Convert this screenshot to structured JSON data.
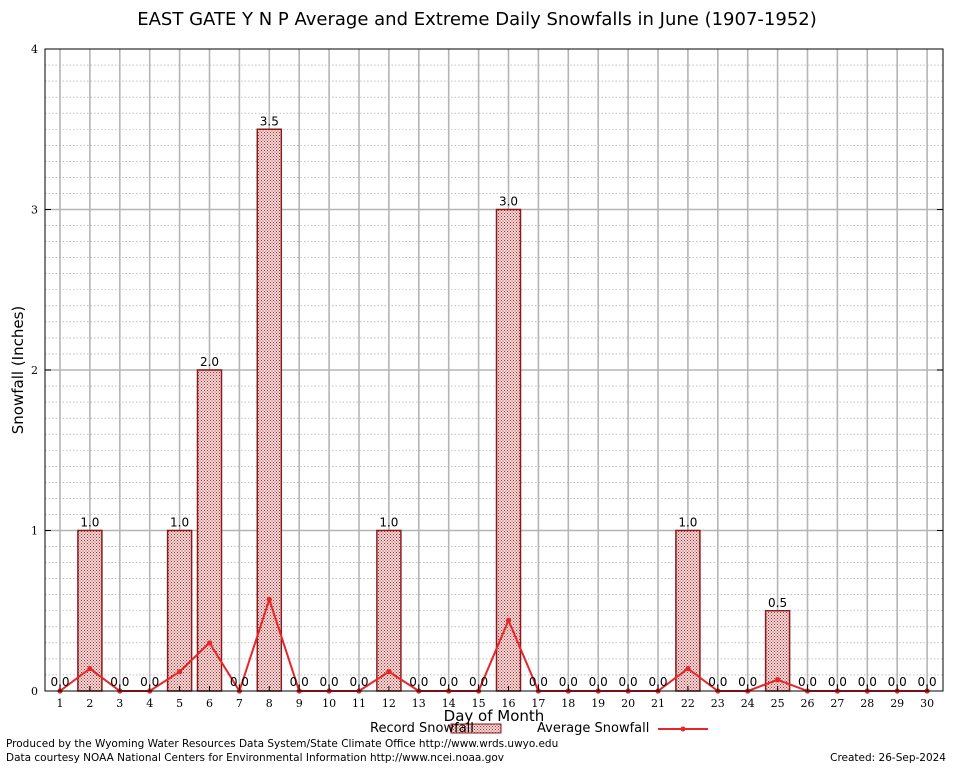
{
  "chart_data": {
    "type": "bar",
    "title": "EAST GATE Y N P Average and Extreme Daily Snowfalls in June (1907-1952)",
    "xlabel": "Day of Month",
    "ylabel": "Snowfall (Inches)",
    "ylim": [
      0,
      4
    ],
    "yticks": [
      "0",
      "1",
      "2",
      "3",
      "4"
    ],
    "grid": true,
    "legend_placement": "bottom",
    "categories": [
      "1",
      "2",
      "3",
      "4",
      "5",
      "6",
      "7",
      "8",
      "9",
      "10",
      "11",
      "12",
      "13",
      "14",
      "15",
      "16",
      "17",
      "18",
      "19",
      "20",
      "21",
      "22",
      "23",
      "24",
      "25",
      "26",
      "27",
      "28",
      "29",
      "30"
    ],
    "series": [
      {
        "name": "Record Snowfall",
        "kind": "bar",
        "color": "#b22222",
        "values": [
          0,
          1.0,
          0,
          0,
          1.0,
          2.0,
          0,
          3.5,
          0,
          0,
          0,
          1.0,
          0,
          0,
          0,
          3.0,
          0,
          0,
          0,
          0,
          0,
          1.0,
          0,
          0,
          0.5,
          0,
          0,
          0,
          0,
          0
        ],
        "labels": [
          "0.0",
          "1.0",
          "0.0",
          "0.0",
          "1.0",
          "2.0",
          "0.0",
          "3.5",
          "0.0",
          "0.0",
          "0.0",
          "1.0",
          "0.0",
          "0.0",
          "0.0",
          "3.0",
          "0.0",
          "0.0",
          "0.0",
          "0.0",
          "0.0",
          "1.0",
          "0.0",
          "0.0",
          "0.5",
          "0.0",
          "0.0",
          "0.0",
          "0.0",
          "0.0"
        ]
      },
      {
        "name": "Average Snowfall",
        "kind": "line",
        "color": "#e8262a",
        "values": [
          0,
          0.14,
          0,
          0,
          0.12,
          0.3,
          0,
          0.57,
          0,
          0,
          0,
          0.12,
          0,
          0,
          0,
          0.44,
          0,
          0,
          0,
          0,
          0,
          0.14,
          0,
          0,
          0.07,
          0,
          0,
          0,
          0,
          0
        ]
      }
    ]
  },
  "footer": {
    "line1": "Produced by the Wyoming Water Resources Data System/State Climate Office http://www.wrds.uwyo.edu",
    "line2": "Data courtesy NOAA National Centers for Environmental Information http://www.ncei.noaa.gov",
    "created": "Created:  26-Sep-2024"
  }
}
